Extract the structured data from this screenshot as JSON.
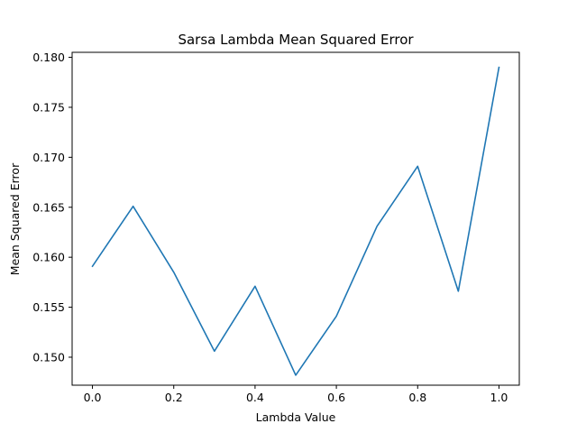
{
  "chart_data": {
    "type": "line",
    "title": "Sarsa Lambda Mean Squared Error",
    "xlabel": "Lambda Value",
    "ylabel": "Mean Squared Error",
    "xlim": [
      -0.05,
      1.05
    ],
    "ylim": [
      0.1472,
      0.1805
    ],
    "xticks": [
      0.0,
      0.2,
      0.4,
      0.6,
      0.8,
      1.0
    ],
    "xtick_labels": [
      "0.0",
      "0.2",
      "0.4",
      "0.6",
      "0.8",
      "1.0"
    ],
    "yticks": [
      0.15,
      0.155,
      0.16,
      0.165,
      0.17,
      0.175,
      0.18
    ],
    "ytick_labels": [
      "0.150",
      "0.155",
      "0.160",
      "0.165",
      "0.170",
      "0.175",
      "0.180"
    ],
    "grid": false,
    "line_color": "#1f77b4",
    "series": [
      {
        "x": [
          0.0,
          0.1,
          0.2,
          0.3,
          0.4,
          0.5,
          0.6,
          0.7,
          0.8,
          0.9,
          1.0
        ],
        "values": [
          0.1591,
          0.1651,
          0.1585,
          0.1506,
          0.1571,
          0.1482,
          0.1541,
          0.1631,
          0.1691,
          0.1566,
          0.179
        ]
      }
    ]
  }
}
